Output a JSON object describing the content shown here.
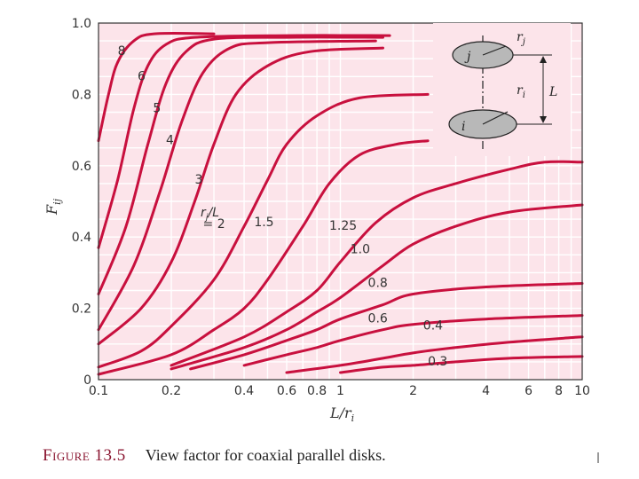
{
  "caption": {
    "figure": "Figure 13.5",
    "text": "View factor for coaxial parallel disks."
  },
  "colors": {
    "plot_bg": "#fce4ea",
    "grid": "#ffffff",
    "curve": "#c8103e",
    "frame": "#333333",
    "disk_fill": "#b8b8b8"
  },
  "diagram": {
    "disk_j": "j",
    "disk_i": "i",
    "radius_j": "r",
    "radius_j_sub": "j",
    "radius_i": "r",
    "radius_i_sub": "i",
    "spacing": "L"
  },
  "chart_data": {
    "type": "line",
    "xscale": "log",
    "xlim": [
      0.1,
      10
    ],
    "ylim": [
      0,
      1.0
    ],
    "xlabel": "L/ri",
    "xlabel_main": "L/r",
    "xlabel_sub": "i",
    "ylabel": "Fij",
    "ylabel_main": "F",
    "ylabel_sub": "ij",
    "grid": true,
    "xticks": [
      0.1,
      0.2,
      0.4,
      0.6,
      0.8,
      1,
      2,
      4,
      6,
      8,
      10
    ],
    "xtick_labels": [
      "0.1",
      "0.2",
      "0.4",
      "0.6",
      "0.8",
      "1",
      "2",
      "4",
      "6",
      "8",
      "10"
    ],
    "yticks": [
      0,
      0.2,
      0.4,
      0.6,
      0.8,
      1.0
    ],
    "ytick_labels": [
      "0",
      "0.2",
      "0.4",
      "0.6",
      "0.8",
      "1.0"
    ],
    "parameter_label": "rj/L",
    "series": [
      {
        "name": "8",
        "label": "8",
        "label_at": [
          0.12,
          0.91
        ],
        "points": [
          [
            0.1,
            0.67
          ],
          [
            0.11,
            0.8
          ],
          [
            0.12,
            0.89
          ],
          [
            0.14,
            0.95
          ],
          [
            0.17,
            0.97
          ],
          [
            0.3,
            0.97
          ]
        ]
      },
      {
        "name": "6",
        "label": "6",
        "label_at": [
          0.145,
          0.84
        ],
        "points": [
          [
            0.1,
            0.37
          ],
          [
            0.12,
            0.56
          ],
          [
            0.14,
            0.76
          ],
          [
            0.16,
            0.88
          ],
          [
            0.19,
            0.94
          ],
          [
            0.25,
            0.96
          ],
          [
            0.6,
            0.965
          ],
          [
            1.6,
            0.965
          ]
        ]
      },
      {
        "name": "5",
        "label": "5",
        "label_at": [
          0.168,
          0.75
        ],
        "points": [
          [
            0.1,
            0.24
          ],
          [
            0.13,
            0.43
          ],
          [
            0.16,
            0.66
          ],
          [
            0.19,
            0.83
          ],
          [
            0.23,
            0.92
          ],
          [
            0.3,
            0.955
          ],
          [
            0.6,
            0.96
          ],
          [
            1.5,
            0.96
          ]
        ]
      },
      {
        "name": "4",
        "label": "4",
        "label_at": [
          0.19,
          0.66
        ],
        "points": [
          [
            0.1,
            0.14
          ],
          [
            0.14,
            0.32
          ],
          [
            0.18,
            0.53
          ],
          [
            0.22,
            0.72
          ],
          [
            0.27,
            0.86
          ],
          [
            0.35,
            0.93
          ],
          [
            0.5,
            0.945
          ],
          [
            1.4,
            0.95
          ]
        ]
      },
      {
        "name": "3",
        "label": "3",
        "label_at": [
          0.25,
          0.55
        ],
        "points": [
          [
            0.1,
            0.1
          ],
          [
            0.15,
            0.2
          ],
          [
            0.2,
            0.33
          ],
          [
            0.25,
            0.5
          ],
          [
            0.3,
            0.66
          ],
          [
            0.37,
            0.8
          ],
          [
            0.5,
            0.88
          ],
          [
            0.75,
            0.92
          ],
          [
            1.5,
            0.93
          ]
        ]
      },
      {
        "name": "2",
        "label": "= 2",
        "label_at": [
          0.27,
          0.425
        ],
        "points": [
          [
            0.1,
            0.035
          ],
          [
            0.15,
            0.08
          ],
          [
            0.2,
            0.15
          ],
          [
            0.3,
            0.28
          ],
          [
            0.4,
            0.43
          ],
          [
            0.5,
            0.56
          ],
          [
            0.6,
            0.66
          ],
          [
            0.8,
            0.74
          ],
          [
            1.2,
            0.79
          ],
          [
            2.3,
            0.8
          ]
        ]
      },
      {
        "name": "1.5",
        "label": "1.5",
        "label_at": [
          0.44,
          0.43
        ],
        "points": [
          [
            0.1,
            0.015
          ],
          [
            0.2,
            0.07
          ],
          [
            0.3,
            0.14
          ],
          [
            0.4,
            0.2
          ],
          [
            0.5,
            0.28
          ],
          [
            0.7,
            0.43
          ],
          [
            0.9,
            0.55
          ],
          [
            1.2,
            0.63
          ],
          [
            1.7,
            0.66
          ],
          [
            2.3,
            0.67
          ]
        ]
      },
      {
        "name": "1.25",
        "label": "1.25",
        "label_at": [
          0.9,
          0.42
        ],
        "points": [
          [
            0.2,
            0.04
          ],
          [
            0.4,
            0.12
          ],
          [
            0.6,
            0.19
          ],
          [
            0.8,
            0.25
          ],
          [
            1.0,
            0.33
          ],
          [
            1.4,
            0.44
          ],
          [
            2,
            0.51
          ],
          [
            3,
            0.55
          ],
          [
            5,
            0.59
          ],
          [
            7,
            0.61
          ],
          [
            10,
            0.61
          ]
        ]
      },
      {
        "name": "1.0",
        "label": "1.0",
        "label_at": [
          1.1,
          0.355
        ],
        "points": [
          [
            0.2,
            0.03
          ],
          [
            0.4,
            0.09
          ],
          [
            0.6,
            0.14
          ],
          [
            0.8,
            0.19
          ],
          [
            1.0,
            0.23
          ],
          [
            1.5,
            0.32
          ],
          [
            2,
            0.38
          ],
          [
            3,
            0.43
          ],
          [
            5,
            0.47
          ],
          [
            10,
            0.49
          ]
        ]
      },
      {
        "name": "0.8",
        "label": "0.8",
        "label_at": [
          1.3,
          0.26
        ],
        "points": [
          [
            0.24,
            0.03
          ],
          [
            0.4,
            0.07
          ],
          [
            0.6,
            0.11
          ],
          [
            0.8,
            0.14
          ],
          [
            1.0,
            0.17
          ],
          [
            1.5,
            0.21
          ],
          [
            2,
            0.24
          ],
          [
            4,
            0.26
          ],
          [
            10,
            0.27
          ]
        ]
      },
      {
        "name": "0.6",
        "label": "0.6",
        "label_at": [
          1.3,
          0.16
        ],
        "points": [
          [
            0.4,
            0.04
          ],
          [
            0.6,
            0.07
          ],
          [
            0.8,
            0.09
          ],
          [
            1.0,
            0.11
          ],
          [
            1.5,
            0.14
          ],
          [
            2,
            0.155
          ],
          [
            4,
            0.17
          ],
          [
            10,
            0.18
          ]
        ]
      },
      {
        "name": "0.4",
        "label": "0.4",
        "label_at": [
          2.2,
          0.14
        ],
        "points": [
          [
            0.6,
            0.02
          ],
          [
            1.0,
            0.04
          ],
          [
            1.5,
            0.06
          ],
          [
            2,
            0.075
          ],
          [
            3,
            0.09
          ],
          [
            5,
            0.105
          ],
          [
            10,
            0.12
          ]
        ]
      },
      {
        "name": "0.3",
        "label": "0.3",
        "label_at": [
          2.3,
          0.04
        ],
        "points": [
          [
            1.0,
            0.02
          ],
          [
            1.5,
            0.035
          ],
          [
            2,
            0.04
          ],
          [
            3,
            0.05
          ],
          [
            5,
            0.06
          ],
          [
            10,
            0.065
          ]
        ]
      }
    ]
  }
}
